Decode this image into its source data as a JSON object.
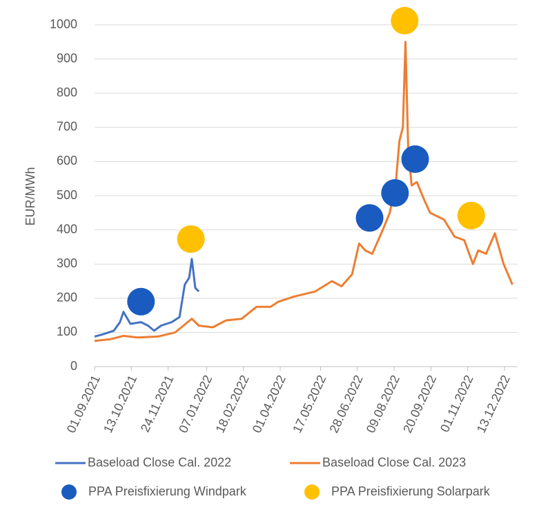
{
  "chart_data": {
    "type": "line",
    "ylabel": "EUR/MWh",
    "ylim": [
      0,
      1000
    ],
    "yticks": [
      0,
      100,
      200,
      300,
      400,
      500,
      600,
      700,
      800,
      900,
      1000
    ],
    "grid": true,
    "xlim": [
      "01.09.2021",
      "28.12.2022"
    ],
    "xticks": [
      "01.09.2021",
      "13.10.2021",
      "24.11.2021",
      "07.01.2022",
      "18.02.2022",
      "01.04.2022",
      "17.05.2022",
      "28.06.2022",
      "09.08.2022",
      "20.09.2022",
      "01.11.2022",
      "13.12.2022"
    ],
    "legend": "bottom",
    "series": [
      {
        "name": "Baseload Close Cal. 2022",
        "color": "#4472c4",
        "kind": "line",
        "x": [
          "01.09.2021",
          "11.09.2021",
          "23.09.2021",
          "30.09.2021",
          "04.10.2021",
          "12.10.2021",
          "24.10.2021",
          "01.11.2021",
          "08.11.2021",
          "16.11.2021",
          "28.11.2021",
          "07.12.2021",
          "13.12.2021",
          "18.12.2021",
          "21.12.2021",
          "25.12.2021",
          "29.12.2021"
        ],
        "values": [
          88,
          95,
          105,
          130,
          160,
          125,
          130,
          120,
          105,
          120,
          130,
          145,
          240,
          260,
          315,
          230,
          220
        ]
      },
      {
        "name": "Baseload Close Cal. 2023",
        "color": "#ed7d31",
        "kind": "line",
        "x": [
          "01.09.2021",
          "19.09.2021",
          "04.10.2021",
          "20.10.2021",
          "12.11.2021",
          "02.12.2021",
          "21.12.2021",
          "29.12.2021",
          "14.01.2022",
          "29.01.2022",
          "16.02.2022",
          "05.03.2022",
          "21.03.2022",
          "30.03.2022",
          "17.04.2022",
          "11.05.2022",
          "30.05.2022",
          "10.06.2022",
          "22.06.2022",
          "30.06.2022",
          "07.07.2022",
          "15.07.2022",
          "27.07.2022",
          "04.08.2022",
          "11.08.2022",
          "15.08.2022",
          "19.08.2022",
          "22.08.2022",
          "25.08.2022",
          "29.08.2022",
          "04.09.2022",
          "12.09.2022",
          "19.09.2022",
          "05.10.2022",
          "17.10.2022",
          "28.10.2022",
          "07.11.2022",
          "13.11.2022",
          "22.11.2022",
          "02.12.2022",
          "12.12.2022",
          "22.12.2022"
        ],
        "values": [
          75,
          80,
          90,
          85,
          88,
          100,
          140,
          120,
          115,
          135,
          140,
          175,
          175,
          190,
          205,
          220,
          250,
          235,
          270,
          360,
          340,
          330,
          400,
          450,
          540,
          660,
          700,
          950,
          640,
          530,
          540,
          490,
          450,
          430,
          380,
          370,
          300,
          340,
          330,
          390,
          300,
          240
        ]
      },
      {
        "name": "PPA Preisfixierung Windpark",
        "color": "#1a5bbf",
        "kind": "dot",
        "x": [
          "24.10.2021",
          "12.07.2022",
          "10.08.2022",
          "02.09.2022"
        ],
        "values": [
          190,
          435,
          508,
          607
        ]
      },
      {
        "name": "PPA Preisfixierung Solarpark",
        "color": "#ffc000",
        "kind": "dot",
        "x": [
          "20.12.2021",
          "21.08.2022",
          "05.11.2022"
        ],
        "values": [
          373,
          1012,
          442
        ]
      }
    ]
  }
}
